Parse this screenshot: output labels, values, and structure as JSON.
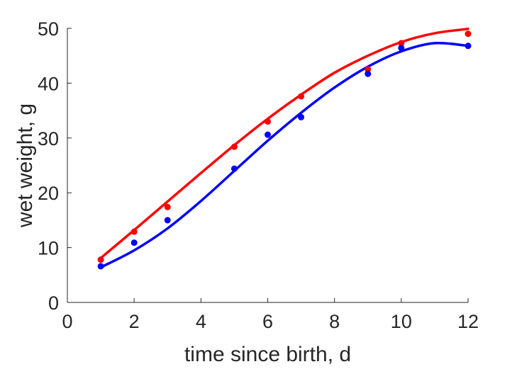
{
  "chart_data": {
    "type": "scatter",
    "title": "",
    "xlabel": "time since birth, d",
    "ylabel": "wet weight, g",
    "xlim": [
      0,
      12
    ],
    "ylim": [
      0,
      50
    ],
    "xticks": [
      0,
      2,
      4,
      6,
      8,
      10,
      12
    ],
    "yticks": [
      0,
      10,
      20,
      30,
      40,
      50
    ],
    "grid": false,
    "legend": "none",
    "series": [
      {
        "color": "#ff0000",
        "points": {
          "x": [
            1,
            2,
            3,
            5,
            6,
            7,
            9,
            10,
            12
          ],
          "y": [
            7.8,
            12.9,
            17.4,
            28.4,
            33.0,
            37.6,
            42.5,
            47.3,
            49.0
          ]
        },
        "fit": {
          "x": [
            1,
            2,
            3,
            4,
            5,
            6,
            7,
            8,
            9,
            10,
            11,
            12
          ],
          "y": [
            8.1,
            13.2,
            18.4,
            23.6,
            28.7,
            33.5,
            37.9,
            41.9,
            45.0,
            47.5,
            49.1,
            49.9
          ]
        }
      },
      {
        "color": "#0000ff",
        "points": {
          "x": [
            1,
            2,
            3,
            5,
            6,
            7,
            9,
            10,
            12
          ],
          "y": [
            6.6,
            10.9,
            15.0,
            24.4,
            30.6,
            33.8,
            41.7,
            46.4,
            46.8
          ]
        },
        "fit": {
          "x": [
            1,
            2,
            3,
            4,
            5,
            6,
            7,
            8,
            9,
            10,
            11,
            12
          ],
          "y": [
            6.4,
            9.5,
            13.5,
            18.5,
            24.0,
            29.5,
            34.6,
            39.2,
            43.0,
            45.8,
            47.3,
            46.8
          ]
        }
      }
    ]
  }
}
